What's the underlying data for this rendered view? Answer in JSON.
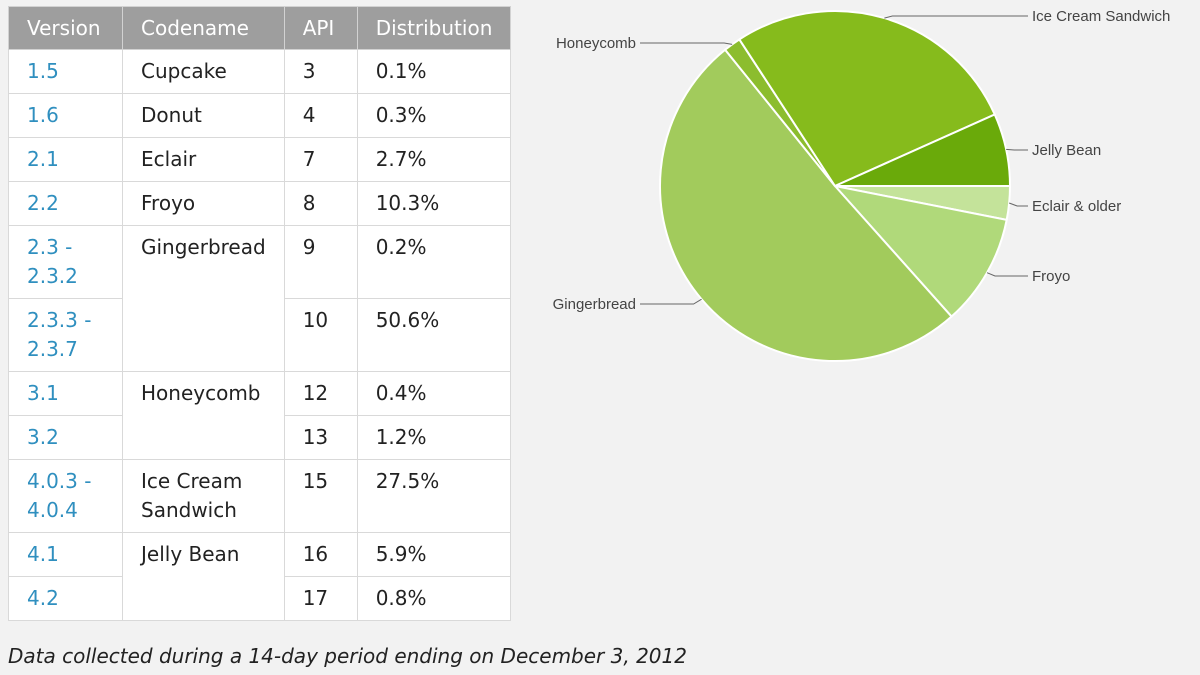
{
  "table": {
    "headers": [
      "Version",
      "Codename",
      "API",
      "Distribution"
    ],
    "rows": [
      {
        "version": "1.5",
        "codename": "Cupcake",
        "api": "3",
        "distribution": "0.1%"
      },
      {
        "version": "1.6",
        "codename": "Donut",
        "api": "4",
        "distribution": "0.3%"
      },
      {
        "version": "2.1",
        "codename": "Eclair",
        "api": "7",
        "distribution": "2.7%"
      },
      {
        "version": "2.2",
        "codename": "Froyo",
        "api": "8",
        "distribution": "10.3%"
      },
      {
        "version": "2.3 -\n2.3.2",
        "codename": "Gingerbread",
        "api": "9",
        "distribution": "0.2%"
      },
      {
        "version": "2.3.3 -\n2.3.7",
        "codename": "",
        "api": "10",
        "distribution": "50.6%"
      },
      {
        "version": "3.1",
        "codename": "Honeycomb",
        "api": "12",
        "distribution": "0.4%"
      },
      {
        "version": "3.2",
        "codename": "",
        "api": "13",
        "distribution": "1.2%"
      },
      {
        "version": "4.0.3 -\n4.0.4",
        "codename": "Ice Cream\nSandwich",
        "api": "15",
        "distribution": "27.5%"
      },
      {
        "version": "4.1",
        "codename": "Jelly Bean",
        "api": "16",
        "distribution": "5.9%"
      },
      {
        "version": "4.2",
        "codename": "",
        "api": "17",
        "distribution": "0.8%"
      }
    ]
  },
  "footnote": "Data collected during a 14-day period ending on December 3, 2012",
  "chart_data": {
    "type": "pie",
    "slices": [
      {
        "label": "Eclair & older",
        "value": 3.1,
        "color": "#c4e39a"
      },
      {
        "label": "Froyo",
        "value": 10.3,
        "color": "#b0d97a"
      },
      {
        "label": "Gingerbread",
        "value": 50.8,
        "color": "#a2cb5c"
      },
      {
        "label": "Honeycomb",
        "value": 1.6,
        "color": "#8cbd2e"
      },
      {
        "label": "Ice Cream Sandwich",
        "value": 27.5,
        "color": "#86bb1c"
      },
      {
        "label": "Jelly Bean",
        "value": 6.7,
        "color": "#6aaa0a"
      }
    ],
    "title": "",
    "legend": "callout labels around pie"
  }
}
